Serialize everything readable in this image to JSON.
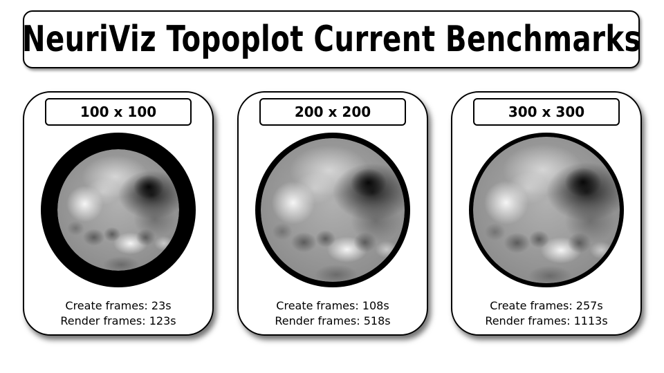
{
  "title": "NeuriViz Topoplot Current Benchmarks",
  "cards": [
    {
      "resolution": "100 x 100",
      "create": "Create frames: 23s",
      "render": "Render frames: 123s"
    },
    {
      "resolution": "200 x 200",
      "create": "Create frames: 108s",
      "render": "Render frames: 518s"
    },
    {
      "resolution": "300 x 300",
      "create": "Create frames: 257s",
      "render": "Render frames: 1113s"
    }
  ]
}
